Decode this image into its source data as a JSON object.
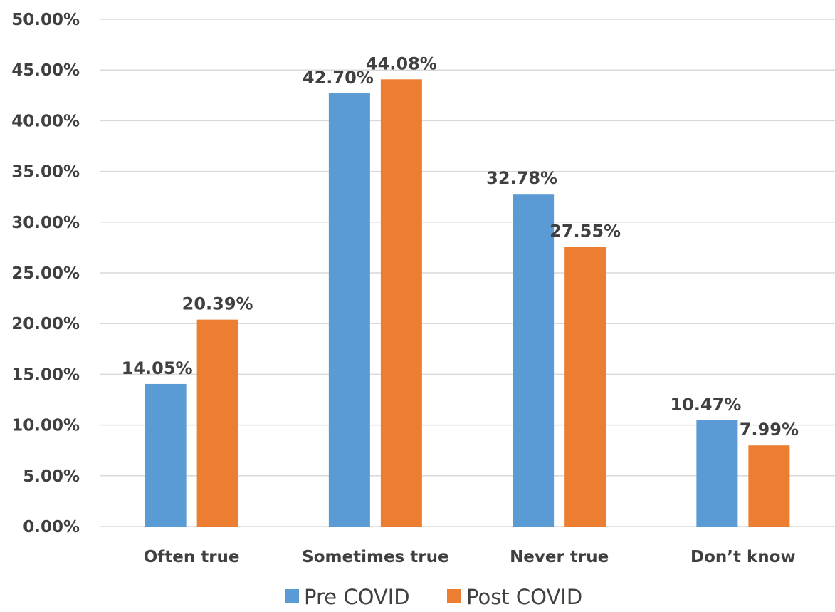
{
  "chart_data": {
    "type": "bar",
    "categories": [
      "Often true",
      "Sometimes true",
      "Never true",
      "Don’t know"
    ],
    "series": [
      {
        "name": "Pre COVID",
        "values": [
          14.05,
          42.7,
          32.78,
          10.47
        ],
        "labels": [
          "14.05%",
          "42.70%",
          "32.78%",
          "10.47%"
        ],
        "color": "#5b9bd5"
      },
      {
        "name": "Post COVID",
        "values": [
          20.39,
          44.08,
          27.55,
          7.99
        ],
        "labels": [
          "20.39%",
          "44.08%",
          "27.55%",
          "7.99%"
        ],
        "color": "#ed7d31"
      }
    ],
    "yticks": [
      "0.00%",
      "5.00%",
      "10.00%",
      "15.00%",
      "20.00%",
      "25.00%",
      "30.00%",
      "35.00%",
      "40.00%",
      "45.00%",
      "50.00%"
    ],
    "ylim": [
      0,
      50
    ],
    "grid": true,
    "legend_position": "bottom",
    "title": "",
    "xlabel": "",
    "ylabel": ""
  }
}
